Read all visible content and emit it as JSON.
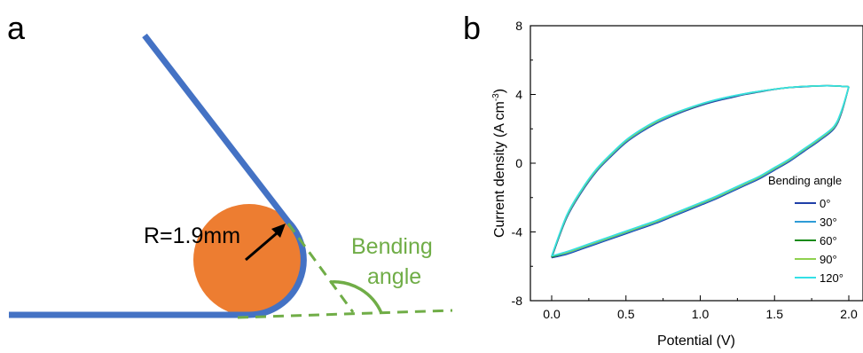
{
  "panel_a": {
    "label": "a",
    "radius_label": "R=1.9mm",
    "angle_label_line1": "Bending",
    "angle_label_line2": "angle",
    "colors": {
      "substrate": "#4472c4",
      "rod": "#ed7d31",
      "angle": "#70ad47",
      "arrow": "#000000"
    }
  },
  "panel_b": {
    "label": "b"
  },
  "chart_data": {
    "type": "line",
    "title": "",
    "xlabel": "Potential (V)",
    "ylabel": "Current density (A cm",
    "ylabel_sup": "-3",
    "ylabel_close": ")",
    "xlim": [
      -0.2,
      2.05
    ],
    "ylim": [
      -8,
      8
    ],
    "xticks": [
      0.0,
      0.5,
      1.0,
      1.5,
      2.0
    ],
    "xtick_labels": [
      "0.0",
      "0.5",
      "1.0",
      "1.5",
      "2.0"
    ],
    "yticks": [
      -8,
      -4,
      0,
      4,
      8
    ],
    "ytick_labels": [
      "-8",
      "-4",
      "0",
      "4",
      "8"
    ],
    "grid": false,
    "legend_title": "Bending angle",
    "legend_position": "center-right",
    "series": [
      {
        "name": "0°",
        "color": "#1f3fa8",
        "upper": [
          [
            0,
            -5.5
          ],
          [
            0.1,
            -3.2
          ],
          [
            0.2,
            -1.7
          ],
          [
            0.3,
            -0.5
          ],
          [
            0.4,
            0.4
          ],
          [
            0.5,
            1.2
          ],
          [
            0.6,
            1.8
          ],
          [
            0.7,
            2.3
          ],
          [
            0.8,
            2.7
          ],
          [
            0.9,
            3.05
          ],
          [
            1.0,
            3.35
          ],
          [
            1.1,
            3.6
          ],
          [
            1.2,
            3.8
          ],
          [
            1.3,
            4.0
          ],
          [
            1.4,
            4.15
          ],
          [
            1.5,
            4.3
          ],
          [
            1.6,
            4.4
          ],
          [
            1.7,
            4.45
          ],
          [
            1.8,
            4.5
          ],
          [
            1.9,
            4.5
          ],
          [
            2.0,
            4.45
          ]
        ],
        "lower": [
          [
            2.0,
            4.45
          ],
          [
            1.95,
            2.9
          ],
          [
            1.9,
            2.0
          ],
          [
            1.8,
            1.3
          ],
          [
            1.7,
            0.7
          ],
          [
            1.6,
            0.1
          ],
          [
            1.5,
            -0.4
          ],
          [
            1.4,
            -0.9
          ],
          [
            1.3,
            -1.3
          ],
          [
            1.2,
            -1.7
          ],
          [
            1.1,
            -2.1
          ],
          [
            1.0,
            -2.45
          ],
          [
            0.9,
            -2.8
          ],
          [
            0.8,
            -3.15
          ],
          [
            0.7,
            -3.5
          ],
          [
            0.6,
            -3.8
          ],
          [
            0.5,
            -4.1
          ],
          [
            0.4,
            -4.4
          ],
          [
            0.3,
            -4.7
          ],
          [
            0.2,
            -5.0
          ],
          [
            0.1,
            -5.3
          ],
          [
            0,
            -5.5
          ]
        ]
      },
      {
        "name": "30°",
        "color": "#2e9bd6",
        "upper": [
          [
            0,
            -5.45
          ],
          [
            0.1,
            -3.15
          ],
          [
            0.2,
            -1.65
          ],
          [
            0.3,
            -0.45
          ],
          [
            0.4,
            0.45
          ],
          [
            0.5,
            1.25
          ],
          [
            0.6,
            1.85
          ],
          [
            0.7,
            2.35
          ],
          [
            0.8,
            2.75
          ],
          [
            0.9,
            3.1
          ],
          [
            1.0,
            3.4
          ],
          [
            1.1,
            3.65
          ],
          [
            1.2,
            3.85
          ],
          [
            1.3,
            4.02
          ],
          [
            1.4,
            4.17
          ],
          [
            1.5,
            4.3
          ],
          [
            1.6,
            4.4
          ],
          [
            1.7,
            4.46
          ],
          [
            1.8,
            4.5
          ],
          [
            1.9,
            4.5
          ],
          [
            2.0,
            4.45
          ]
        ],
        "lower": [
          [
            2.0,
            4.45
          ],
          [
            1.95,
            2.95
          ],
          [
            1.9,
            2.05
          ],
          [
            1.8,
            1.35
          ],
          [
            1.7,
            0.75
          ],
          [
            1.6,
            0.15
          ],
          [
            1.5,
            -0.35
          ],
          [
            1.4,
            -0.85
          ],
          [
            1.3,
            -1.25
          ],
          [
            1.2,
            -1.65
          ],
          [
            1.1,
            -2.05
          ],
          [
            1.0,
            -2.4
          ],
          [
            0.9,
            -2.75
          ],
          [
            0.8,
            -3.1
          ],
          [
            0.7,
            -3.45
          ],
          [
            0.6,
            -3.75
          ],
          [
            0.5,
            -4.05
          ],
          [
            0.4,
            -4.35
          ],
          [
            0.3,
            -4.65
          ],
          [
            0.2,
            -4.95
          ],
          [
            0.1,
            -5.25
          ],
          [
            0,
            -5.45
          ]
        ]
      },
      {
        "name": "60°",
        "color": "#1a8a1a",
        "upper": [
          [
            0,
            -5.45
          ],
          [
            0.1,
            -3.1
          ],
          [
            0.2,
            -1.6
          ],
          [
            0.3,
            -0.4
          ],
          [
            0.4,
            0.5
          ],
          [
            0.5,
            1.3
          ],
          [
            0.6,
            1.9
          ],
          [
            0.7,
            2.4
          ],
          [
            0.8,
            2.8
          ],
          [
            0.9,
            3.12
          ],
          [
            1.0,
            3.42
          ],
          [
            1.1,
            3.67
          ],
          [
            1.2,
            3.87
          ],
          [
            1.3,
            4.04
          ],
          [
            1.4,
            4.18
          ],
          [
            1.5,
            4.31
          ],
          [
            1.6,
            4.41
          ],
          [
            1.7,
            4.47
          ],
          [
            1.8,
            4.5
          ],
          [
            1.9,
            4.5
          ],
          [
            2.0,
            4.45
          ]
        ],
        "lower": [
          [
            2.0,
            4.45
          ],
          [
            1.95,
            3.0
          ],
          [
            1.9,
            2.1
          ],
          [
            1.8,
            1.4
          ],
          [
            1.7,
            0.8
          ],
          [
            1.6,
            0.2
          ],
          [
            1.5,
            -0.3
          ],
          [
            1.4,
            -0.8
          ],
          [
            1.3,
            -1.2
          ],
          [
            1.2,
            -1.6
          ],
          [
            1.1,
            -2.0
          ],
          [
            1.0,
            -2.35
          ],
          [
            0.9,
            -2.7
          ],
          [
            0.8,
            -3.05
          ],
          [
            0.7,
            -3.4
          ],
          [
            0.6,
            -3.7
          ],
          [
            0.5,
            -4.0
          ],
          [
            0.4,
            -4.3
          ],
          [
            0.3,
            -4.6
          ],
          [
            0.2,
            -4.9
          ],
          [
            0.1,
            -5.2
          ],
          [
            0,
            -5.45
          ]
        ]
      },
      {
        "name": "90°",
        "color": "#8fd14f",
        "upper": [
          [
            0,
            -5.4
          ],
          [
            0.1,
            -3.1
          ],
          [
            0.2,
            -1.6
          ],
          [
            0.3,
            -0.4
          ],
          [
            0.4,
            0.5
          ],
          [
            0.5,
            1.3
          ],
          [
            0.6,
            1.9
          ],
          [
            0.7,
            2.4
          ],
          [
            0.8,
            2.8
          ],
          [
            0.9,
            3.12
          ],
          [
            1.0,
            3.42
          ],
          [
            1.1,
            3.67
          ],
          [
            1.2,
            3.87
          ],
          [
            1.3,
            4.04
          ],
          [
            1.4,
            4.18
          ],
          [
            1.5,
            4.31
          ],
          [
            1.6,
            4.41
          ],
          [
            1.7,
            4.47
          ],
          [
            1.8,
            4.5
          ],
          [
            1.9,
            4.5
          ],
          [
            2.0,
            4.45
          ]
        ],
        "lower": [
          [
            2.0,
            4.45
          ],
          [
            1.95,
            3.0
          ],
          [
            1.9,
            2.1
          ],
          [
            1.8,
            1.4
          ],
          [
            1.7,
            0.8
          ],
          [
            1.6,
            0.2
          ],
          [
            1.5,
            -0.3
          ],
          [
            1.4,
            -0.8
          ],
          [
            1.3,
            -1.2
          ],
          [
            1.2,
            -1.6
          ],
          [
            1.1,
            -2.0
          ],
          [
            1.0,
            -2.35
          ],
          [
            0.9,
            -2.7
          ],
          [
            0.8,
            -3.05
          ],
          [
            0.7,
            -3.4
          ],
          [
            0.6,
            -3.7
          ],
          [
            0.5,
            -4.0
          ],
          [
            0.4,
            -4.3
          ],
          [
            0.3,
            -4.6
          ],
          [
            0.2,
            -4.9
          ],
          [
            0.1,
            -5.2
          ],
          [
            0,
            -5.4
          ]
        ]
      },
      {
        "name": "120°",
        "color": "#34e0e6",
        "upper": [
          [
            0,
            -5.4
          ],
          [
            0.1,
            -3.05
          ],
          [
            0.2,
            -1.55
          ],
          [
            0.3,
            -0.35
          ],
          [
            0.4,
            0.55
          ],
          [
            0.5,
            1.35
          ],
          [
            0.6,
            1.95
          ],
          [
            0.7,
            2.45
          ],
          [
            0.8,
            2.83
          ],
          [
            0.9,
            3.15
          ],
          [
            1.0,
            3.44
          ],
          [
            1.1,
            3.68
          ],
          [
            1.2,
            3.88
          ],
          [
            1.3,
            4.05
          ],
          [
            1.4,
            4.19
          ],
          [
            1.5,
            4.31
          ],
          [
            1.6,
            4.41
          ],
          [
            1.7,
            4.47
          ],
          [
            1.8,
            4.5
          ],
          [
            1.9,
            4.5
          ],
          [
            2.0,
            4.45
          ]
        ],
        "lower": [
          [
            2.0,
            4.45
          ],
          [
            1.95,
            3.05
          ],
          [
            1.9,
            2.15
          ],
          [
            1.8,
            1.45
          ],
          [
            1.7,
            0.85
          ],
          [
            1.6,
            0.25
          ],
          [
            1.5,
            -0.25
          ],
          [
            1.4,
            -0.75
          ],
          [
            1.3,
            -1.15
          ],
          [
            1.2,
            -1.55
          ],
          [
            1.1,
            -1.95
          ],
          [
            1.0,
            -2.3
          ],
          [
            0.9,
            -2.65
          ],
          [
            0.8,
            -3.0
          ],
          [
            0.7,
            -3.35
          ],
          [
            0.6,
            -3.65
          ],
          [
            0.5,
            -3.95
          ],
          [
            0.4,
            -4.25
          ],
          [
            0.3,
            -4.55
          ],
          [
            0.2,
            -4.85
          ],
          [
            0.1,
            -5.15
          ],
          [
            0,
            -5.4
          ]
        ]
      }
    ]
  }
}
